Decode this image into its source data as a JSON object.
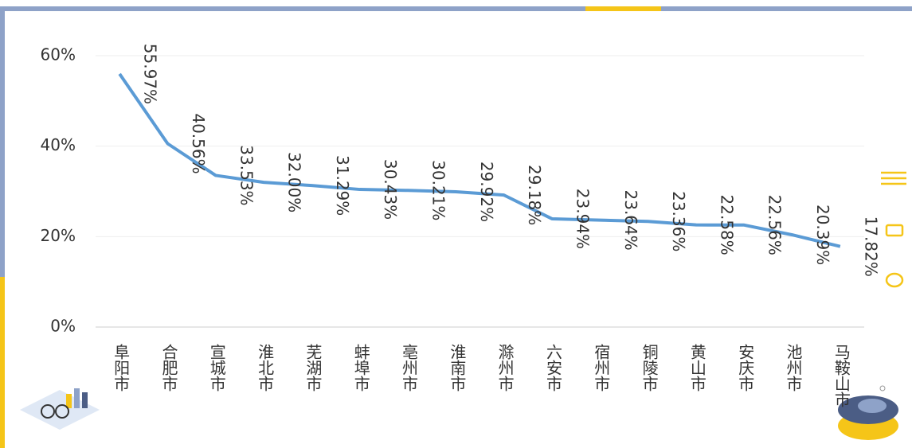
{
  "chart_data": {
    "type": "line",
    "categories": [
      "阜阳市",
      "合肥市",
      "宣城市",
      "淮北市",
      "芜湖市",
      "蚌埠市",
      "亳州市",
      "淮南市",
      "滁州市",
      "六安市",
      "宿州市",
      "铜陵市",
      "黄山市",
      "安庆市",
      "池州市",
      "马鞍山市"
    ],
    "values": [
      55.97,
      40.56,
      33.53,
      32.0,
      31.29,
      30.43,
      30.21,
      29.92,
      29.18,
      23.94,
      23.64,
      23.36,
      22.58,
      22.56,
      20.39,
      17.82
    ],
    "value_labels": [
      "55.97%",
      "40.56%",
      "33.53%",
      "32.00%",
      "31.29%",
      "30.43%",
      "30.21%",
      "29.92%",
      "29.18%",
      "23.94%",
      "23.64%",
      "23.36%",
      "22.58%",
      "22.56%",
      "20.39%",
      "17.82%"
    ],
    "color": "#5b9bd5",
    "ylim": [
      0,
      60
    ],
    "yticks": [
      {
        "value": 0,
        "label": "0%"
      },
      {
        "value": 20,
        "label": "20%"
      },
      {
        "value": 40,
        "label": "40%"
      },
      {
        "value": 60,
        "label": "60%"
      }
    ],
    "grid": true
  }
}
